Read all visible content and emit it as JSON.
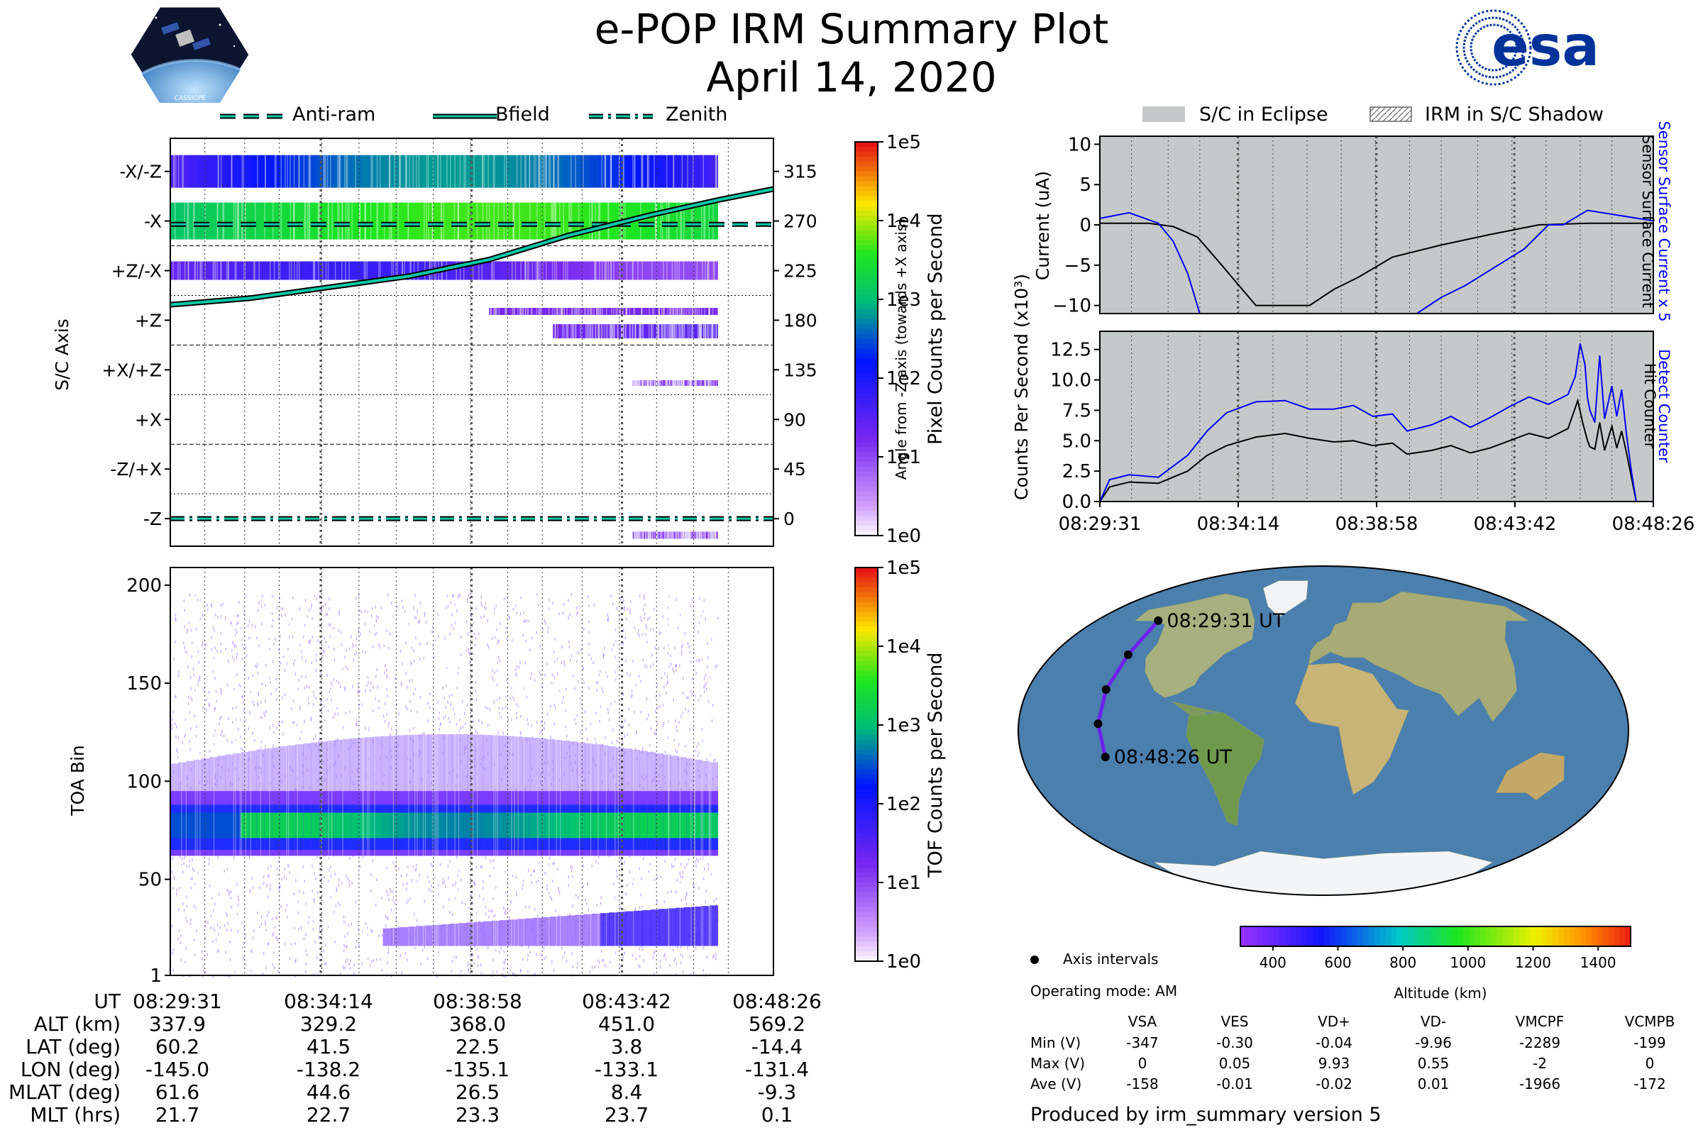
{
  "header": {
    "title": "e-POP IRM Summary Plot",
    "date": "April 14, 2020",
    "esa_logo_text": "esa",
    "cassiope_logo_text": "CASSIOPE"
  },
  "colors": {
    "bfield": "#00c8a8",
    "sensor_current": "#0000ff",
    "hit_counter": "#000000",
    "eclipse": "#c6c9c9",
    "track": "#7020f0",
    "esa_blue": "#003399"
  },
  "top_legend": {
    "items": [
      {
        "label": "Anti-ram",
        "style": "dashed"
      },
      {
        "label": "Bfield",
        "style": "solid"
      },
      {
        "label": "Zenith",
        "style": "dashdot"
      }
    ]
  },
  "right_legend": {
    "items": [
      {
        "label": "S/C in Eclipse"
      },
      {
        "label": "IRM in S/C Shadow"
      }
    ]
  },
  "chart_data": [
    {
      "id": "sc-axis",
      "type": "heatmap",
      "ylabel": "S/C Axis",
      "y2label": "Angle from -Z axis (towards +X axis)",
      "yticks": [
        "-X/-Z",
        "-X",
        "+Z/-X",
        "+Z",
        "+X/+Z",
        "+X",
        "-Z/+X",
        "-Z"
      ],
      "y2ticks": [
        315,
        270,
        225,
        180,
        135,
        90,
        45,
        0
      ],
      "y2lim": [
        -25,
        345
      ],
      "xlim": [
        0,
        1135
      ],
      "data_end": 1030,
      "colorbar": {
        "label": "Pixel Counts per Second",
        "ticks": [
          "1e5",
          "1e4",
          "1e3",
          "1e2",
          "1e1",
          "1e0"
        ]
      },
      "bfield": {
        "x": [
          0,
          150,
          300,
          450,
          600,
          750,
          900,
          1030,
          1135
        ],
        "y": [
          194,
          200,
          210,
          220,
          235,
          257,
          275,
          289,
          299
        ]
      },
      "antiram": {
        "y": 267
      },
      "zenith": {
        "y": 0
      }
    },
    {
      "id": "toa",
      "type": "heatmap",
      "ylabel": "TOA Bin",
      "yticks": [
        1,
        50,
        100,
        150,
        200
      ],
      "ylim": [
        1,
        209
      ],
      "xlim": [
        0,
        1135
      ],
      "data_end": 1030,
      "colorbar": {
        "label": "TOF Counts per Second",
        "ticks": [
          "1e5",
          "1e4",
          "1e3",
          "1e2",
          "1e1",
          "1e0"
        ]
      }
    },
    {
      "id": "current",
      "type": "line",
      "ylabel": "Current (uA)",
      "y2label_blue": "Sensor Surface Current x 5",
      "y2label_black": "Sensor Surface Current",
      "ylim": [
        -11,
        11
      ],
      "yticks": [
        10,
        5,
        0,
        -5,
        -10
      ],
      "xlim": [
        0,
        1135
      ],
      "series": [
        {
          "name": "Sensor Surface Current",
          "color": "#000000",
          "x": [
            0,
            100,
            150,
            200,
            250,
            320,
            380,
            430,
            480,
            530,
            600,
            700,
            800,
            900,
            1000,
            1135
          ],
          "y": [
            0.2,
            0.2,
            -0.2,
            -1.5,
            -5,
            -10,
            -10,
            -10,
            -8,
            -6.5,
            -4,
            -2.5,
            -1.2,
            0,
            0.2,
            0.2
          ]
        },
        {
          "name": "Sensor Surface Current x 5",
          "color": "#0000ff",
          "x": [
            0,
            60,
            120,
            150,
            180,
            205,
            650,
            700,
            750,
            790,
            830,
            870,
            900,
            920,
            950,
            1000,
            1135
          ],
          "y": [
            0.8,
            1.5,
            0.2,
            -2,
            -6,
            -11,
            -11,
            -9,
            -7.5,
            -6,
            -4.5,
            -3,
            -1.2,
            0,
            0,
            1.8,
            0.5
          ]
        }
      ]
    },
    {
      "id": "counts",
      "type": "line",
      "ylabel": "Counts Per Second (x10³)",
      "y2label_blue": "Detect Counter",
      "y2label_black": "Hit Counter",
      "ylim": [
        0,
        14
      ],
      "yticks": [
        0.0,
        2.5,
        5.0,
        7.5,
        10.0,
        12.5
      ],
      "xlim": [
        0,
        1135
      ],
      "xticks": [
        "08:29:31",
        "08:34:14",
        "08:38:58",
        "08:43:42",
        "08:48:26"
      ],
      "series": [
        {
          "name": "Hit Counter",
          "color": "#000000",
          "x": [
            0,
            20,
            60,
            120,
            180,
            220,
            260,
            320,
            380,
            430,
            480,
            520,
            560,
            600,
            630,
            680,
            720,
            760,
            800,
            840,
            880,
            920,
            960,
            980,
            990,
            1000,
            1005,
            1015,
            1025,
            1035,
            1050,
            1060,
            1070,
            1080,
            1090,
            1100,
            1135
          ],
          "y": [
            0,
            1.2,
            1.6,
            1.5,
            2.5,
            3.8,
            4.6,
            5.3,
            5.6,
            5.2,
            4.9,
            5.0,
            4.6,
            4.8,
            3.9,
            4.2,
            4.6,
            4.0,
            4.4,
            5.0,
            5.6,
            5.2,
            6.0,
            8.3,
            6.5,
            5.0,
            4.5,
            4.3,
            6.5,
            4.2,
            6.2,
            4.4,
            5.8,
            4.0,
            2.0,
            0,
            0
          ]
        },
        {
          "name": "Detect Counter",
          "color": "#0000ff",
          "x": [
            0,
            20,
            60,
            120,
            180,
            220,
            260,
            320,
            380,
            430,
            480,
            520,
            560,
            600,
            630,
            680,
            720,
            760,
            800,
            840,
            880,
            920,
            960,
            975,
            985,
            995,
            1000,
            1005,
            1015,
            1025,
            1035,
            1050,
            1060,
            1070,
            1080,
            1090,
            1100,
            1135
          ],
          "y": [
            0,
            1.8,
            2.2,
            2.0,
            3.8,
            5.8,
            7.3,
            8.2,
            8.3,
            7.6,
            7.6,
            7.9,
            7.0,
            7.2,
            5.8,
            6.3,
            7.0,
            6.1,
            6.9,
            7.8,
            8.6,
            8.0,
            8.8,
            10.3,
            13.0,
            11.2,
            8.5,
            7.5,
            6.5,
            12.0,
            6.8,
            9.5,
            7.0,
            9.2,
            5.5,
            2.5,
            0,
            0
          ]
        }
      ]
    }
  ],
  "eclipse_span": [
    0,
    1135
  ],
  "dotted_grid_x": [
    65,
    140,
    205,
    285,
    355,
    425,
    495,
    565,
    635,
    700,
    775,
    845,
    915,
    985,
    1050,
    1135
  ],
  "major_grid_x": [
    283,
    567,
    850
  ],
  "ephemeris": {
    "rows": [
      {
        "label": "UT",
        "values": [
          "08:29:31",
          "08:34:14",
          "08:38:58",
          "08:43:42",
          "08:48:26"
        ]
      },
      {
        "label": "ALT (km)",
        "values": [
          "337.9",
          "329.2",
          "368.0",
          "451.0",
          "569.2"
        ]
      },
      {
        "label": "LAT (deg)",
        "values": [
          "60.2",
          "41.5",
          "22.5",
          "3.8",
          "-14.4"
        ]
      },
      {
        "label": "LON (deg)",
        "values": [
          "-145.0",
          "-138.2",
          "-135.1",
          "-133.1",
          "-131.4"
        ]
      },
      {
        "label": "MLAT (deg)",
        "values": [
          "61.6",
          "44.6",
          "26.5",
          "8.4",
          "-9.3"
        ]
      },
      {
        "label": "MLT (hrs)",
        "values": [
          "21.7",
          "22.7",
          "23.3",
          "23.7",
          "0.1"
        ]
      }
    ]
  },
  "map": {
    "start_label": "08:29:31 UT",
    "end_label": "08:48:26 UT",
    "track_lonlat": [
      [
        -145.0,
        60.2
      ],
      [
        -138.2,
        41.5
      ],
      [
        -135.1,
        22.5
      ],
      [
        -133.1,
        3.8
      ],
      [
        -131.4,
        -14.4
      ]
    ]
  },
  "altitude_bar": {
    "label": "Altitude (km)",
    "ticks": [
      "400",
      "600",
      "800",
      "1000",
      "1200",
      "1400"
    ],
    "range": [
      300,
      1500
    ]
  },
  "info": {
    "axis_intervals": "Axis intervals",
    "operating_mode": "Operating mode: AM",
    "produced_by": "Produced by irm_summary version 5"
  },
  "stats": {
    "columns": [
      "VSA",
      "VES",
      "VD+",
      "VD-",
      "VMCPF",
      "VCMPB"
    ],
    "rows": [
      {
        "label": "Min (V)",
        "values": [
          "-347",
          "-0.30",
          "-0.04",
          "-9.96",
          "-2289",
          "-199"
        ]
      },
      {
        "label": "Max (V)",
        "values": [
          "0",
          "0.05",
          "9.93",
          "0.55",
          "-2",
          "0"
        ]
      },
      {
        "label": "Ave (V)",
        "values": [
          "-158",
          "-0.01",
          "-0.02",
          "0.01",
          "-1966",
          "-172"
        ]
      }
    ]
  }
}
